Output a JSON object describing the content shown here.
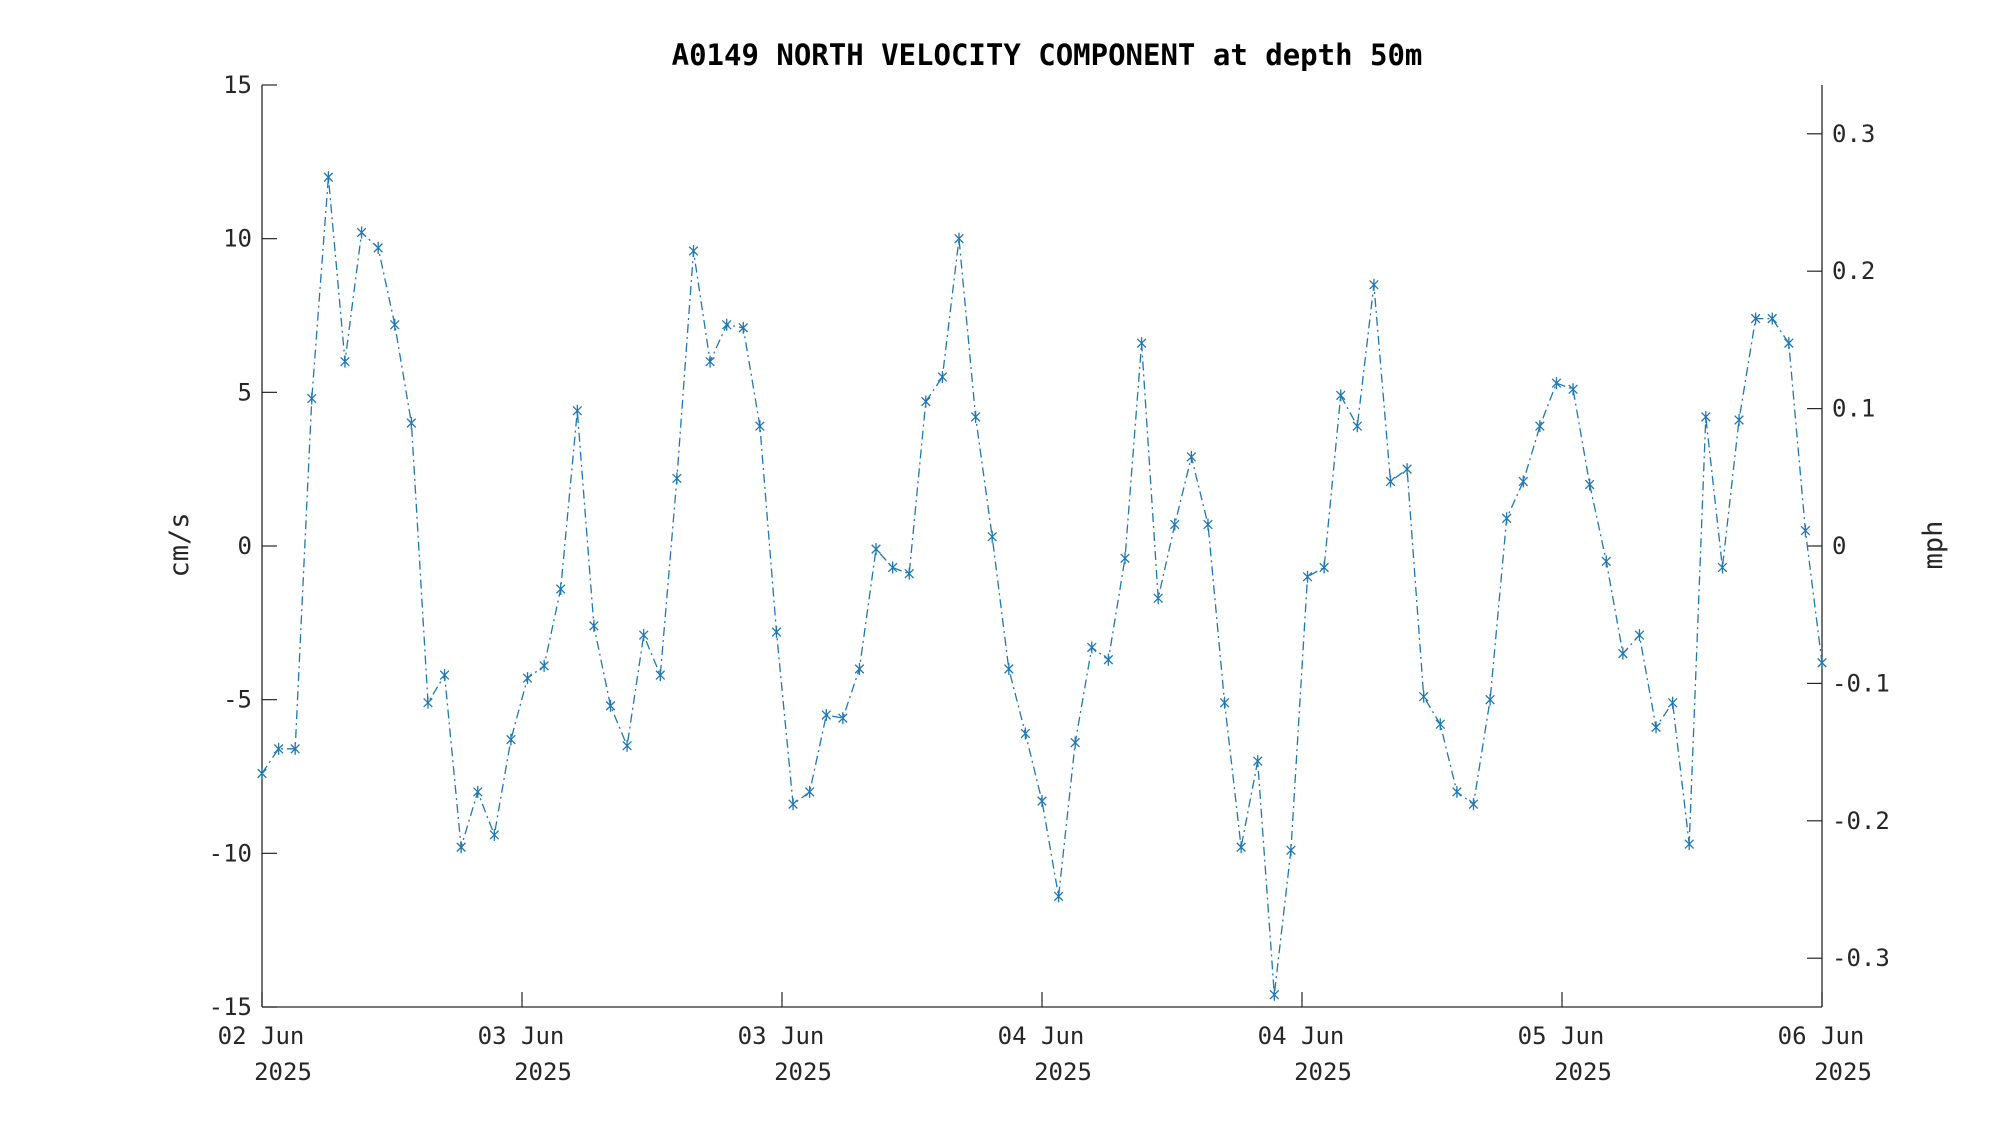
{
  "chart_data": {
    "type": "line",
    "title": "A0149 NORTH VELOCITY COMPONENT at depth 50m",
    "ylabel": "cm/s",
    "y2label": "mph",
    "ylim": [
      -15,
      15
    ],
    "y2lim": [
      -0.3355,
      0.3355
    ],
    "yticks": [
      "15",
      "10",
      "5",
      "0",
      "-5",
      "-10",
      "-15"
    ],
    "y2ticks": [
      "0.3",
      "0.2",
      "0.1",
      "0",
      "-0.1",
      "-0.2",
      "-0.3"
    ],
    "xticks": [
      {
        "day": "02 Jun",
        "year": "2025"
      },
      {
        "day": "03 Jun",
        "year": "2025"
      },
      {
        "day": "03 Jun",
        "year": "2025"
      },
      {
        "day": "04 Jun",
        "year": "2025"
      },
      {
        "day": "04 Jun",
        "year": "2025"
      },
      {
        "day": "05 Jun",
        "year": "2025"
      },
      {
        "day": "06 Jun",
        "year": "2025"
      }
    ],
    "grid": false,
    "marker": "asterisk",
    "line_style": "dash-dot",
    "color": "#1f77b4",
    "series": [
      {
        "values": [
          -7.4,
          -6.6,
          -6.6,
          4.8,
          12.0,
          6.0,
          10.2,
          9.7,
          7.2,
          4.0,
          -5.1,
          -4.2,
          -9.8,
          -8.0,
          -9.4,
          -6.3,
          -4.3,
          -3.9,
          -1.4,
          4.4,
          -2.6,
          -5.2,
          -6.5,
          -2.9,
          -4.2,
          2.2,
          9.6,
          6.0,
          7.2,
          7.1,
          3.9,
          -2.8,
          -8.4,
          -8.0,
          -5.5,
          -5.6,
          -4.0,
          -0.1,
          -0.7,
          -0.9,
          4.7,
          5.5,
          10.0,
          4.2,
          0.3,
          -4.0,
          -6.1,
          -8.3,
          -11.4,
          -6.4,
          -3.3,
          -3.7,
          -0.4,
          6.6,
          -1.7,
          0.7,
          2.9,
          0.7,
          -5.1,
          -9.8,
          -7.0,
          -14.6,
          -9.9,
          -1.0,
          -0.7,
          4.9,
          3.9,
          8.5,
          2.1,
          2.5,
          -4.9,
          -5.8,
          -8.0,
          -8.4,
          -5.0,
          0.9,
          2.1,
          3.9,
          5.3,
          5.1,
          2.0,
          -0.5,
          -3.5,
          -2.9,
          -5.9,
          -5.1,
          -9.7,
          4.2,
          -0.7,
          4.1,
          7.4,
          7.4,
          6.6,
          0.5,
          -3.8
        ]
      }
    ]
  }
}
